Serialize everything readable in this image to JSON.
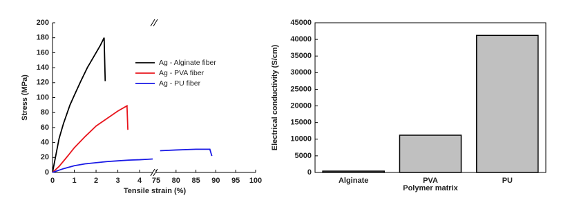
{
  "chart_data": [
    {
      "type": "line",
      "x_label": "Tensile strain (%)",
      "y_label": "Stress (MPa)",
      "x_segments": [
        {
          "xlim": [
            0,
            4.6
          ],
          "xticks": [
            0,
            1,
            2,
            3,
            4
          ]
        },
        {
          "xlim": [
            75,
            100
          ],
          "xticks": [
            75,
            80,
            85,
            90,
            95,
            100
          ]
        }
      ],
      "ylim": [
        0,
        200
      ],
      "yticks": [
        0,
        20,
        40,
        60,
        80,
        100,
        120,
        140,
        160,
        180,
        200
      ],
      "legend": "upper right",
      "series": [
        {
          "name": "Ag - Alginate fiber",
          "color": "#000000",
          "x": [
            0,
            0.1,
            0.3,
            0.5,
            0.8,
            1.0,
            1.3,
            1.6,
            2.0,
            2.2,
            2.37,
            2.42
          ],
          "values": [
            0,
            15,
            45,
            65,
            90,
            103,
            122,
            140,
            160,
            170,
            180,
            122
          ]
        },
        {
          "name": "Ag - PVA fiber",
          "color": "#e8141c",
          "x": [
            0,
            0.3,
            0.7,
            1.0,
            1.5,
            2.0,
            2.5,
            3.0,
            3.42,
            3.46
          ],
          "values": [
            0,
            8,
            22,
            33,
            48,
            62,
            72,
            82,
            89,
            57
          ]
        },
        {
          "name": "Ag - PU fiber",
          "color": "#1a1ae6",
          "x": [
            0,
            0.5,
            1.0,
            1.5,
            2.0,
            2.5,
            3.0,
            3.5,
            4.0,
            4.6,
            75.5,
            76,
            80,
            85,
            88.5,
            89
          ],
          "values": [
            0,
            5,
            9,
            11.5,
            13,
            14.5,
            15.5,
            16.5,
            17,
            18,
            null,
            29,
            30,
            31,
            31,
            22
          ]
        }
      ]
    },
    {
      "type": "bar",
      "x_label": "Polymer matrix",
      "y_label": "Electrical conductivity (S/cm)",
      "categories": [
        "Alginate",
        "PVA",
        "PU"
      ],
      "values": [
        400,
        11200,
        41200
      ],
      "color": "#c0c0c0",
      "ylim": [
        0,
        45000
      ],
      "yticks": [
        0,
        5000,
        10000,
        15000,
        20000,
        25000,
        30000,
        35000,
        40000,
        45000
      ]
    }
  ]
}
